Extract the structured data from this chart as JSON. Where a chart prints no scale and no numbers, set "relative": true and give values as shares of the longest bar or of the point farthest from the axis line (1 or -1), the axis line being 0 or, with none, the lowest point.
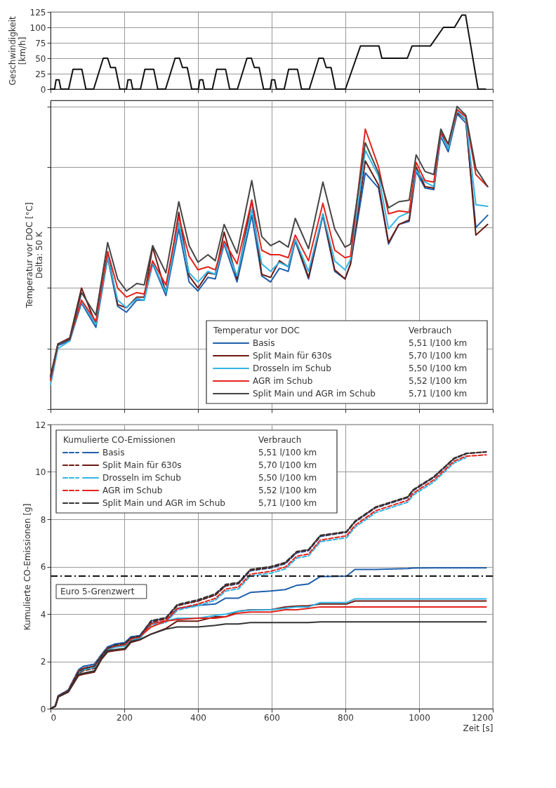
{
  "chart_data": [
    {
      "type": "line",
      "ylabel": "Geschwindigkeit\n[km/h]",
      "xlim": [
        0,
        1200
      ],
      "xticks": [
        0,
        200,
        400,
        600,
        800,
        1000,
        1200
      ],
      "ylim": [
        0,
        125
      ],
      "yticks": [
        0,
        25,
        50,
        75,
        100,
        125
      ],
      "tick_labels": "y",
      "grid": true,
      "color": "#111111",
      "x": [
        0,
        11,
        15,
        23,
        28,
        49,
        61,
        85,
        96,
        117,
        143,
        155,
        163,
        176,
        188,
        195,
        206,
        210,
        218,
        223,
        244,
        256,
        280,
        291,
        312,
        338,
        350,
        358,
        371,
        383,
        390,
        401,
        405,
        413,
        418,
        439,
        451,
        475,
        486,
        507,
        533,
        545,
        553,
        566,
        578,
        585,
        596,
        600,
        608,
        613,
        634,
        646,
        670,
        681,
        702,
        728,
        740,
        748,
        761,
        773,
        800,
        841,
        891,
        899,
        968,
        981,
        1031,
        1066,
        1096,
        1116,
        1126,
        1160,
        1180
      ],
      "values": [
        0,
        0,
        15,
        15,
        0,
        0,
        32,
        32,
        0,
        0,
        50,
        50,
        35,
        35,
        0,
        0,
        0,
        15,
        15,
        0,
        0,
        32,
        32,
        0,
        0,
        50,
        50,
        35,
        35,
        0,
        0,
        0,
        15,
        15,
        0,
        0,
        32,
        32,
        0,
        0,
        50,
        50,
        35,
        35,
        0,
        0,
        0,
        15,
        15,
        0,
        0,
        32,
        32,
        0,
        0,
        50,
        50,
        35,
        35,
        0,
        0,
        70,
        70,
        50,
        50,
        70,
        70,
        100,
        100,
        120,
        120,
        0,
        0
      ]
    },
    {
      "type": "line",
      "relative": true,
      "ylabel": "Temperatur vor DOC [°C]\nDelta: 50 K",
      "xlim": [
        0,
        1200
      ],
      "xticks": [
        0,
        200,
        400,
        600,
        800,
        1000,
        1200
      ],
      "tick_labels": false,
      "grid": true,
      "legend": "bottom right",
      "legend_title": "Temperatur vor DOC",
      "annotations": [
        "Verbrauch",
        "5,51 l/100 km",
        "5,70 l/100 km",
        "5,50 l/100 km",
        "5,52 l/100 km",
        "5,71 l/100 km"
      ],
      "x": [
        0,
        20,
        52,
        84,
        123,
        155,
        182,
        206,
        234,
        254,
        277,
        313,
        348,
        376,
        400,
        427,
        447,
        471,
        506,
        546,
        573,
        597,
        621,
        645,
        664,
        700,
        739,
        771,
        799,
        814,
        854,
        890,
        917,
        945,
        973,
        992,
        1016,
        1040,
        1059,
        1079,
        1103,
        1127,
        1154,
        1186
      ],
      "series": [
        {
          "name": "Basis",
          "color": "#1f5fad",
          "values": [
            0.1,
            0.21,
            0.225,
            0.35,
            0.27,
            0.5,
            0.34,
            0.32,
            0.36,
            0.36,
            0.48,
            0.375,
            0.595,
            0.42,
            0.39,
            0.435,
            0.43,
            0.545,
            0.42,
            0.64,
            0.44,
            0.42,
            0.465,
            0.455,
            0.555,
            0.43,
            0.64,
            0.455,
            0.43,
            0.48,
            0.78,
            0.73,
            0.545,
            0.61,
            0.62,
            0.785,
            0.73,
            0.725,
            0.9,
            0.85,
            0.975,
            0.945,
            0.6,
            0.64
          ]
        },
        {
          "name": "Split Main für 630s",
          "color": "#6b1a12",
          "values": [
            0.11,
            0.215,
            0.235,
            0.4,
            0.28,
            0.52,
            0.345,
            0.335,
            0.37,
            0.37,
            0.535,
            0.385,
            0.65,
            0.44,
            0.4,
            0.45,
            0.445,
            0.585,
            0.43,
            0.69,
            0.445,
            0.435,
            0.49,
            0.47,
            0.56,
            0.435,
            0.645,
            0.46,
            0.43,
            0.48,
            0.82,
            0.74,
            0.55,
            0.61,
            0.625,
            0.8,
            0.735,
            0.73,
            0.91,
            0.86,
            0.98,
            0.955,
            0.575,
            0.61
          ]
        },
        {
          "name": "Drosseln im Schub",
          "color": "#33b5e5",
          "values": [
            0.08,
            0.2,
            0.225,
            0.355,
            0.28,
            0.505,
            0.36,
            0.335,
            0.365,
            0.36,
            0.485,
            0.385,
            0.615,
            0.45,
            0.42,
            0.455,
            0.445,
            0.55,
            0.44,
            0.66,
            0.48,
            0.455,
            0.485,
            0.47,
            0.56,
            0.455,
            0.645,
            0.49,
            0.46,
            0.495,
            0.855,
            0.77,
            0.595,
            0.635,
            0.65,
            0.79,
            0.75,
            0.735,
            0.905,
            0.86,
            0.985,
            0.955,
            0.675,
            0.67
          ]
        },
        {
          "name": "AGR im Schub",
          "color": "#e3231b",
          "values": [
            0.095,
            0.215,
            0.23,
            0.36,
            0.29,
            0.52,
            0.4,
            0.37,
            0.385,
            0.38,
            0.49,
            0.41,
            0.635,
            0.505,
            0.46,
            0.47,
            0.46,
            0.555,
            0.48,
            0.69,
            0.525,
            0.51,
            0.51,
            0.5,
            0.575,
            0.49,
            0.68,
            0.525,
            0.5,
            0.505,
            0.925,
            0.8,
            0.645,
            0.655,
            0.65,
            0.815,
            0.755,
            0.75,
            0.915,
            0.875,
            0.99,
            0.965,
            0.775,
            0.735
          ]
        },
        {
          "name": "Split Main und AGR im Schub",
          "color": "#444444",
          "values": [
            0.105,
            0.215,
            0.23,
            0.385,
            0.31,
            0.55,
            0.43,
            0.39,
            0.415,
            0.41,
            0.54,
            0.45,
            0.685,
            0.54,
            0.485,
            0.51,
            0.49,
            0.61,
            0.515,
            0.755,
            0.57,
            0.54,
            0.555,
            0.535,
            0.63,
            0.53,
            0.75,
            0.595,
            0.535,
            0.545,
            0.88,
            0.78,
            0.665,
            0.685,
            0.69,
            0.84,
            0.785,
            0.775,
            0.925,
            0.875,
            1.0,
            0.97,
            0.795,
            0.735
          ]
        }
      ]
    },
    {
      "type": "line",
      "xlabel": "Zeit [s]",
      "ylabel": "Kumulierte CO-Emissionen [g]",
      "xlim": [
        0,
        1200
      ],
      "xticks": [
        0,
        200,
        400,
        600,
        800,
        {
          "value": 1000,
          "label": "1000"
        },
        {
          "value": 1200,
          "label": "1200"
        }
      ],
      "ylim": [
        0,
        12
      ],
      "yticks": [
        0,
        2,
        4,
        6,
        8,
        10,
        12
      ],
      "grid": true,
      "legend": "top left",
      "legend_title": "Kumulierte CO-Emissionen",
      "annotations": [
        "Verbrauch",
        "5,51 l/100 km",
        "5,70 l/100 km",
        "5,50 l/100 km",
        "5,52 l/100 km",
        "5,71 l/100 km"
      ],
      "ref_lines": [
        {
          "axis": "y",
          "value": 5.6,
          "label": "Euro 5-Grenzwert",
          "color": "#111111",
          "line_style": "dashdot"
        }
      ],
      "x": [
        0,
        13,
        21,
        48,
        76,
        88,
        119,
        139,
        155,
        175,
        202,
        218,
        242,
        273,
        313,
        344,
        400,
        447,
        475,
        510,
        542,
        597,
        637,
        668,
        700,
        732,
        803,
        826,
        882,
        969,
        984,
        1040,
        1095,
        1127,
        1182
      ],
      "series": [
        {
          "color": "#1f5fad",
          "line_style": "dashed",
          "values": [
            0,
            0.12,
            0.55,
            0.79,
            1.64,
            1.78,
            1.88,
            2.3,
            2.61,
            2.73,
            2.79,
            3.03,
            3.09,
            3.7,
            3.82,
            4.36,
            4.55,
            4.79,
            5.18,
            5.27,
            5.82,
            5.94,
            6.12,
            6.58,
            6.67,
            7.27,
            7.45,
            7.88,
            8.48,
            8.91,
            9.21,
            9.76,
            10.55,
            10.75,
            null
          ]
        },
        {
          "name": "Basis",
          "color": "#1f5fad",
          "line_style": "solid",
          "values": [
            0,
            0.12,
            0.55,
            0.79,
            1.64,
            1.78,
            1.88,
            2.3,
            2.61,
            2.73,
            2.79,
            3.03,
            3.09,
            3.6,
            3.7,
            4.24,
            4.36,
            4.42,
            4.67,
            4.67,
            4.91,
            4.97,
            5.03,
            5.21,
            5.27,
            5.58,
            5.6,
            5.88,
            5.88,
            5.92,
            5.94,
            5.95,
            5.95,
            5.95,
            5.95
          ]
        },
        {
          "color": "#6b1a12",
          "line_style": "dashed",
          "values": [
            0,
            0.1,
            0.5,
            0.72,
            1.48,
            1.6,
            1.7,
            2.15,
            2.48,
            2.6,
            2.68,
            2.95,
            3.02,
            3.65,
            3.8,
            4.35,
            4.55,
            4.8,
            5.2,
            5.3,
            5.85,
            5.97,
            6.15,
            6.62,
            6.7,
            7.3,
            7.46,
            7.9,
            8.5,
            8.93,
            9.23,
            9.78,
            10.57,
            10.77,
            10.84
          ]
        },
        {
          "name": "Split Main für 630s",
          "color": "#6b1a12",
          "line_style": "solid",
          "values": [
            0,
            0.1,
            0.5,
            0.7,
            1.4,
            1.45,
            1.55,
            2.1,
            2.4,
            2.45,
            2.5,
            2.8,
            2.9,
            3.15,
            3.39,
            3.7,
            3.7,
            3.88,
            3.88,
            4.12,
            4.18,
            4.18,
            4.3,
            4.33,
            4.35,
            4.42,
            4.42,
            4.55,
            4.55,
            4.55,
            4.55,
            4.55,
            4.55,
            4.55,
            4.55
          ]
        },
        {
          "color": "#33b5e5",
          "line_style": "dashed",
          "values": [
            null,
            null,
            null,
            null,
            1.52,
            1.65,
            1.75,
            2.2,
            2.5,
            2.6,
            2.66,
            2.9,
            2.97,
            3.52,
            3.64,
            4.16,
            4.35,
            4.58,
            4.97,
            5.06,
            5.6,
            5.72,
            5.9,
            6.36,
            6.45,
            7.05,
            7.22,
            7.66,
            8.28,
            8.72,
            9.02,
            9.58,
            10.38,
            10.6,
            null
          ]
        },
        {
          "name": "Drosseln im Schub",
          "color": "#33b5e5",
          "line_style": "solid",
          "values": [
            null,
            null,
            0.52,
            0.75,
            1.55,
            1.65,
            1.75,
            2.2,
            2.5,
            2.6,
            2.65,
            2.9,
            2.97,
            3.58,
            3.7,
            3.82,
            3.82,
            3.94,
            3.99,
            4.12,
            4.16,
            4.18,
            4.24,
            4.3,
            4.3,
            4.48,
            4.48,
            4.64,
            4.64,
            4.64,
            4.64,
            4.64,
            4.64,
            4.64,
            4.64
          ]
        },
        {
          "color": "#e3231b",
          "line_style": "dashed",
          "values": [
            0,
            0.11,
            0.53,
            0.76,
            1.58,
            1.7,
            1.8,
            2.25,
            2.55,
            2.65,
            2.72,
            2.95,
            3.02,
            3.58,
            3.72,
            4.22,
            4.42,
            4.66,
            5.05,
            5.14,
            5.68,
            5.8,
            5.98,
            6.44,
            6.53,
            7.12,
            7.3,
            7.74,
            8.36,
            8.8,
            9.1,
            9.66,
            10.45,
            10.66,
            10.72
          ]
        },
        {
          "name": "AGR im Schub",
          "color": "#e3231b",
          "line_style": "solid",
          "values": [
            0,
            0.11,
            0.53,
            0.76,
            1.58,
            1.7,
            1.8,
            2.25,
            2.55,
            2.65,
            2.7,
            2.95,
            3.05,
            3.45,
            3.7,
            3.76,
            3.82,
            3.82,
            3.88,
            4.04,
            4.08,
            4.08,
            4.18,
            4.18,
            4.24,
            4.3,
            4.3,
            4.3,
            4.3,
            4.3,
            4.3,
            4.3,
            4.3,
            4.3,
            4.3
          ]
        },
        {
          "color": "#333333",
          "line_style": "dashed",
          "values": [
            0,
            0.12,
            0.53,
            0.75,
            1.55,
            1.68,
            1.8,
            2.25,
            2.55,
            2.68,
            2.75,
            3.0,
            3.06,
            3.72,
            3.85,
            4.4,
            4.6,
            4.85,
            5.25,
            5.33,
            5.88,
            6.0,
            6.18,
            6.64,
            6.72,
            7.32,
            7.48,
            7.92,
            8.52,
            8.95,
            9.25,
            9.8,
            10.58,
            10.78,
            10.85
          ]
        },
        {
          "name": "Split Main und AGR im Schub",
          "color": "#333333",
          "line_style": "solid",
          "values": [
            0,
            0.1,
            0.5,
            0.72,
            1.45,
            1.5,
            1.6,
            2.15,
            2.45,
            2.5,
            2.55,
            2.85,
            2.92,
            3.15,
            3.36,
            3.45,
            3.45,
            3.52,
            3.58,
            3.58,
            3.64,
            3.64,
            3.64,
            3.64,
            3.64,
            3.67,
            3.67,
            3.67,
            3.67,
            3.67,
            3.67,
            3.67,
            3.67,
            3.67,
            3.67
          ]
        }
      ]
    }
  ]
}
